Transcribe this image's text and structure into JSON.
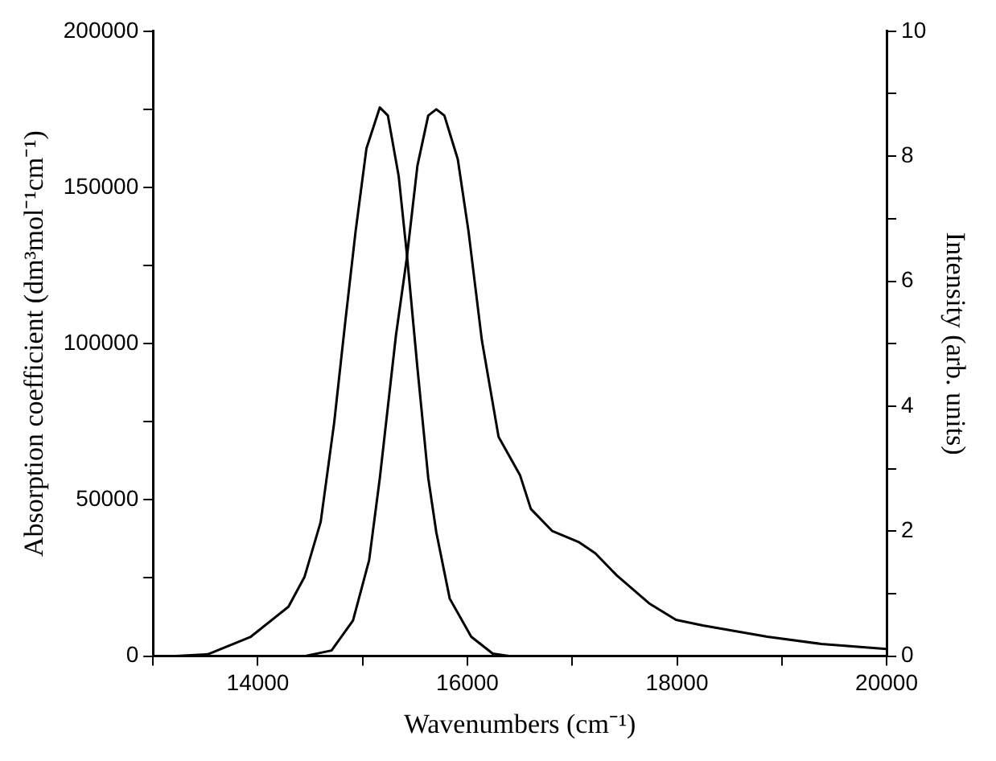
{
  "chart_data": {
    "type": "line",
    "xlabel": "Wavenumbers (cm⁻¹)",
    "ylabel": "Absorption coefficient (dm³mol⁻¹cm⁻¹)",
    "y2label": "Intensity (arb. units)",
    "xlim": [
      13000,
      20000
    ],
    "xticks": [
      {
        "value": 13000,
        "label": null
      },
      14000,
      {
        "value": 15000,
        "label": null
      },
      16000,
      {
        "value": 17000,
        "label": null
      },
      18000,
      {
        "value": 19000,
        "label": null
      },
      20000
    ],
    "ylim": [
      0,
      200000
    ],
    "yticks": [
      0,
      {
        "value": 25000,
        "label": null
      },
      50000,
      {
        "value": 75000,
        "label": null
      },
      100000,
      {
        "value": 125000,
        "label": null
      },
      150000,
      {
        "value": 175000,
        "label": null
      },
      200000
    ],
    "y2lim": [
      0,
      10
    ],
    "y2ticks": [
      0,
      {
        "value": 1,
        "label": null
      },
      2,
      {
        "value": 3,
        "label": null
      },
      4,
      {
        "value": 5,
        "label": null
      },
      6,
      {
        "value": 7,
        "label": null
      },
      8,
      {
        "value": 9,
        "label": null
      },
      10
    ],
    "grid": false,
    "legend": false,
    "marker": "none",
    "line_style": "solid",
    "series": [
      {
        "color": "#000000",
        "axis": "y2",
        "x": [
          13215,
          13523,
          13933,
          14292,
          14446,
          14600,
          14728,
          14831,
          14933,
          15036,
          15164,
          15241,
          15344,
          15421,
          15523,
          15626,
          15703,
          15831,
          16036,
          16241,
          16395
        ],
        "values": [
          0,
          0.03,
          0.31,
          0.79,
          1.27,
          2.15,
          3.73,
          5.3,
          6.8,
          8.12,
          8.78,
          8.65,
          7.68,
          6.45,
          4.61,
          2.85,
          1.98,
          0.92,
          0.31,
          0.04,
          0
        ]
      },
      {
        "color": "#000000",
        "x": [
          14446,
          14703,
          14908,
          15062,
          15164,
          15318,
          15421,
          15523,
          15626,
          15703,
          15780,
          15908,
          16010,
          16138,
          16297,
          16503,
          16605,
          16810,
          17067,
          17220,
          17426,
          17733,
          17990,
          18246,
          18861,
          19374,
          20000
        ],
        "values": [
          0,
          1800,
          11400,
          30700,
          57000,
          102700,
          127300,
          157000,
          173000,
          175000,
          173000,
          159000,
          136000,
          101000,
          70200,
          57800,
          47100,
          40000,
          36400,
          32900,
          25800,
          16900,
          11600,
          9800,
          6200,
          3900,
          2300
        ]
      }
    ]
  }
}
